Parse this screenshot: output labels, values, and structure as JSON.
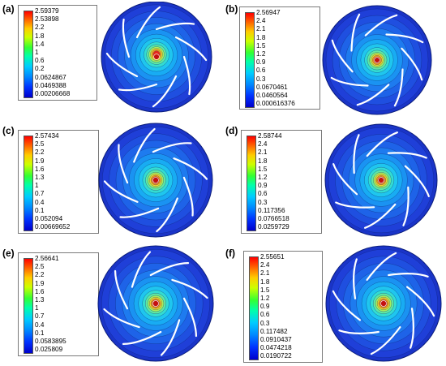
{
  "panels": [
    {
      "label": "(a)",
      "legend_ticks": [
        "2.59379",
        "2.53898",
        "2.2",
        "1.8",
        "1.4",
        "1",
        "0.6",
        "0.2",
        "0.0624867",
        "0.0469388",
        "0.00206668"
      ]
    },
    {
      "label": "(b)",
      "legend_ticks": [
        "2.56947",
        "2.4",
        "2.1",
        "1.8",
        "1.5",
        "1.2",
        "0.9",
        "0.6",
        "0.3",
        "0.0670461",
        "0.0460564",
        "0.000616376"
      ]
    },
    {
      "label": "(c)",
      "legend_ticks": [
        "2.57434",
        "2.5",
        "2.2",
        "1.9",
        "1.6",
        "1.3",
        "1",
        "0.7",
        "0.4",
        "0.1",
        "0.052094",
        "0.00669652"
      ]
    },
    {
      "label": "(d)",
      "legend_ticks": [
        "2.58744",
        "2.4",
        "2.1",
        "1.8",
        "1.5",
        "1.2",
        "0.9",
        "0.6",
        "0.3",
        "0.117356",
        "0.0766518",
        "0.0259729"
      ]
    },
    {
      "label": "(e)",
      "legend_ticks": [
        "2.56641",
        "2.5",
        "2.2",
        "1.9",
        "1.6",
        "1.3",
        "1",
        "0.7",
        "0.4",
        "0.1",
        "0.0583895",
        "0.025809"
      ]
    },
    {
      "label": "(f)",
      "legend_ticks": [
        "2.55651",
        "2.4",
        "2.1",
        "1.8",
        "1.5",
        "1.2",
        "0.9",
        "0.6",
        "0.3",
        "0.117482",
        "0.0910437",
        "0.0474218",
        "0.0190722"
      ]
    }
  ],
  "colors": {
    "outer": "#1f3fd8",
    "inner_red": "#e8281c",
    "blade": "#ffffff"
  }
}
